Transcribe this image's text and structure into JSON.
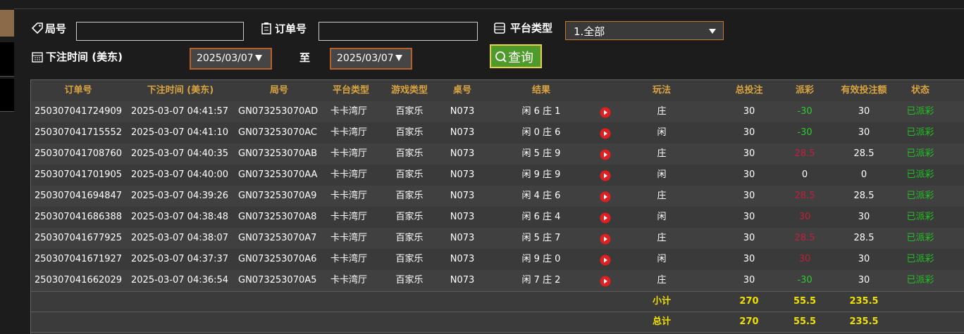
{
  "filters": {
    "round_label": "局号",
    "order_label": "订单号",
    "platform_label": "平台类型",
    "platform_value": "1.全部",
    "time_label": "下注时间 (美东)",
    "date_from": "2025/03/07",
    "to_label": "至",
    "date_to": "2025/03/07",
    "search_button": "查询"
  },
  "table": {
    "headers": [
      "订单号",
      "下注时间 (美东)",
      "局号",
      "平台类型",
      "游戏类型",
      "桌号",
      "结果",
      "玩法",
      "总投注",
      "派彩",
      "有效投注额",
      "状态"
    ],
    "rows": [
      [
        "250307041724909",
        "2025-03-07 04:41:57",
        "GN073253070AD",
        "卡卡湾厅",
        "百家乐",
        "N073",
        "闲 6 庄 1",
        "庄",
        30,
        -30,
        30,
        "已派彩"
      ],
      [
        "250307041715552",
        "2025-03-07 04:41:10",
        "GN073253070AC",
        "卡卡湾厅",
        "百家乐",
        "N073",
        "闲 0 庄 6",
        "闲",
        30,
        -30,
        30,
        "已派彩"
      ],
      [
        "250307041708760",
        "2025-03-07 04:40:35",
        "GN073253070AB",
        "卡卡湾厅",
        "百家乐",
        "N073",
        "闲 5 庄 9",
        "庄",
        30,
        28.5,
        28.5,
        "已派彩"
      ],
      [
        "250307041701905",
        "2025-03-07 04:40:00",
        "GN073253070AA",
        "卡卡湾厅",
        "百家乐",
        "N073",
        "闲 9 庄 9",
        "闲",
        30,
        0,
        0,
        "已派彩"
      ],
      [
        "250307041694847",
        "2025-03-07 04:39:26",
        "GN073253070A9",
        "卡卡湾厅",
        "百家乐",
        "N073",
        "闲 4 庄 6",
        "庄",
        30,
        28.5,
        28.5,
        "已派彩"
      ],
      [
        "250307041686388",
        "2025-03-07 04:38:48",
        "GN073253070A8",
        "卡卡湾厅",
        "百家乐",
        "N073",
        "闲 6 庄 4",
        "闲",
        30,
        30,
        30,
        "已派彩"
      ],
      [
        "250307041677925",
        "2025-03-07 04:38:07",
        "GN073253070A7",
        "卡卡湾厅",
        "百家乐",
        "N073",
        "闲 5 庄 7",
        "庄",
        30,
        28.5,
        28.5,
        "已派彩"
      ],
      [
        "250307041671927",
        "2025-03-07 04:37:37",
        "GN073253070A6",
        "卡卡湾厅",
        "百家乐",
        "N073",
        "闲 9 庄 0",
        "闲",
        30,
        30,
        30,
        "已派彩"
      ],
      [
        "250307041662029",
        "2025-03-07 04:36:54",
        "GN073253070A5",
        "卡卡湾厅",
        "百家乐",
        "N073",
        "闲 7 庄 2",
        "庄",
        30,
        -30,
        30,
        "已派彩"
      ]
    ],
    "subtotal": {
      "label": "小计",
      "total_bet": 270,
      "payout": 55.5,
      "valid_bet": 235.5
    },
    "total": {
      "label": "总计",
      "total_bet": 270,
      "payout": 55.5,
      "valid_bet": 235.5
    }
  }
}
